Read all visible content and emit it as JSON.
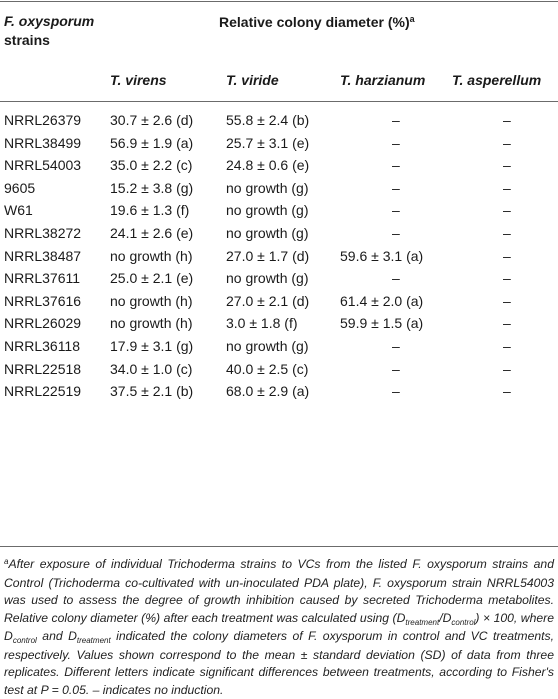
{
  "table": {
    "header": {
      "strains_label_italic": "F. oxysporum",
      "strains_label_rest": "strains",
      "relative_label": "Relative colony diameter (%)",
      "relative_sup": "a",
      "columns": [
        "T. virens",
        "T. viride",
        "T. harzianum",
        "T. asperellum"
      ]
    },
    "rows": [
      {
        "strain": "NRRL26379",
        "virens": "30.7 ± 2.6 (d)",
        "viride": "55.8 ± 2.4 (b)",
        "harzianum": "–",
        "asperellum": "–"
      },
      {
        "strain": "NRRL38499",
        "virens": "56.9 ± 1.9 (a)",
        "viride": "25.7 ± 3.1 (e)",
        "harzianum": "–",
        "asperellum": "–"
      },
      {
        "strain": "NRRL54003",
        "virens": "35.0 ± 2.2 (c)",
        "viride": "24.8 ± 0.6 (e)",
        "harzianum": "–",
        "asperellum": "–"
      },
      {
        "strain": "9605",
        "virens": "15.2 ± 3.8 (g)",
        "viride": "no growth (g)",
        "harzianum": "–",
        "asperellum": "–"
      },
      {
        "strain": "W61",
        "virens": "19.6 ± 1.3 (f)",
        "viride": "no growth (g)",
        "harzianum": "–",
        "asperellum": "–"
      },
      {
        "strain": "NRRL38272",
        "virens": "24.1 ± 2.6 (e)",
        "viride": "no growth (g)",
        "harzianum": "–",
        "asperellum": "–"
      },
      {
        "strain": "NRRL38487",
        "virens": "no growth (h)",
        "viride": "27.0 ± 1.7 (d)",
        "harzianum": "59.6 ± 3.1 (a)",
        "asperellum": "–"
      },
      {
        "strain": "NRRL37611",
        "virens": "25.0 ± 2.1 (e)",
        "viride": "no growth (g)",
        "harzianum": "–",
        "asperellum": "–"
      },
      {
        "strain": "NRRL37616",
        "virens": "no growth (h)",
        "viride": "27.0 ± 2.1 (d)",
        "harzianum": "61.4 ± 2.0 (a)",
        "asperellum": "–"
      },
      {
        "strain": "NRRL26029",
        "virens": "no growth (h)",
        "viride": "3.0 ± 1.8 (f)",
        "harzianum": "59.9 ± 1.5 (a)",
        "asperellum": "–"
      },
      {
        "strain": "NRRL36118",
        "virens": "17.9 ± 3.1 (g)",
        "viride": "no growth (g)",
        "harzianum": "–",
        "asperellum": "–"
      },
      {
        "strain": "NRRL22518",
        "virens": "34.0 ± 1.0 (c)",
        "viride": "40.0 ± 2.5 (c)",
        "harzianum": "–",
        "asperellum": "–"
      },
      {
        "strain": "NRRL22519",
        "virens": "37.5 ± 2.1 (b)",
        "viride": "68.0 ± 2.9 (a)",
        "harzianum": "–",
        "asperellum": "–"
      }
    ]
  },
  "footnote": {
    "sup": "a",
    "p1": "After exposure of individual Trichoderma strains to VCs from the listed F. oxysporum strains and Control (Trichoderma co-cultivated with un-inoculated PDA plate), F. oxysporum strain NRRL54003 was used to assess the degree of growth inhibition caused by secreted Trichoderma metabolites. Relative colony diameter (%) after each treatment was calculated using (D",
    "sub_treatment": "treatment",
    "slash": "/D",
    "sub_control": "control",
    "p2": ") × 100, where D",
    "p3": " and D",
    "p4": " indicated the colony diameters of F. oxysporum in control and VC treatments, respectively. Values shown correspond to the mean ± standard deviation (SD) of data from three replicates. Different letters indicate significant differences between treatments, according to Fisher's test at P = 0.05. – indicates no induction."
  }
}
